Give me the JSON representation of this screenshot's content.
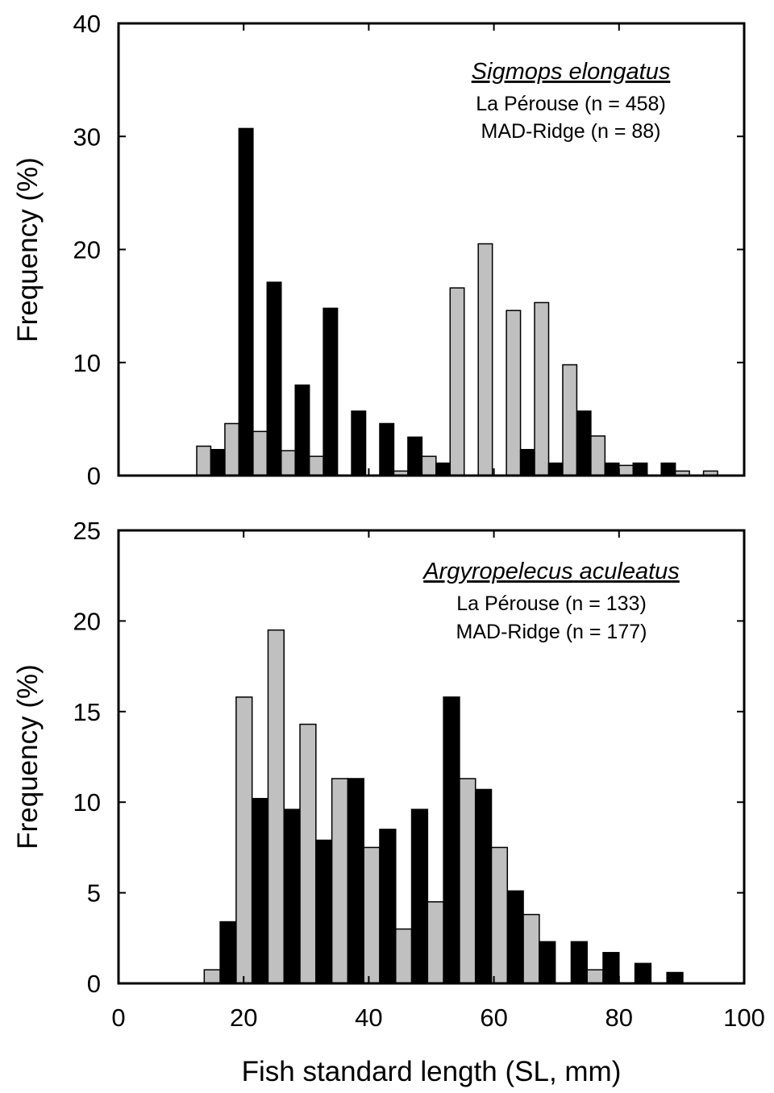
{
  "chart_data": [
    {
      "type": "bar",
      "legend": {
        "species": "Sigmops elongatus",
        "entries": [
          "La Pérouse (n = 458)",
          "MAD-Ridge (n = 88)"
        ]
      },
      "xlabel": "",
      "ylabel": "Frequency (%)",
      "xlim": [
        0,
        100
      ],
      "ylim": [
        0,
        40
      ],
      "yticks": [
        0,
        10,
        20,
        30,
        40
      ],
      "xticks": [
        0,
        20,
        40,
        60,
        80,
        100
      ],
      "x": [
        12.5,
        17,
        21.5,
        26,
        30.5,
        35,
        39.5,
        44,
        48.5,
        53,
        57.5,
        62,
        66.5,
        71,
        75.5,
        80,
        84.5,
        89,
        93.5
      ],
      "series": [
        {
          "key": "lap",
          "color": "#c0c0c0",
          "values": [
            2.6,
            4.6,
            3.9,
            2.2,
            1.7,
            0,
            0,
            0.4,
            1.7,
            16.6,
            20.5,
            14.6,
            15.3,
            9.8,
            3.5,
            0.9,
            0,
            0.4,
            0.4
          ]
        },
        {
          "key": "mad",
          "color": "#000000",
          "values": [
            2.3,
            30.7,
            17.1,
            8.0,
            14.8,
            5.7,
            4.6,
            3.4,
            1.1,
            0,
            0,
            2.3,
            1.1,
            5.7,
            1.1,
            1.1,
            1.1,
            0,
            0
          ]
        }
      ]
    },
    {
      "type": "bar",
      "legend": {
        "species": "Argyropelecus aculeatus",
        "entries": [
          "La Pérouse (n = 133)",
          "MAD-Ridge (n = 177)"
        ]
      },
      "xlabel": "Fish standard length (SL, mm)",
      "ylabel": "Frequency (%)",
      "xlim": [
        0,
        100
      ],
      "ylim": [
        0,
        25
      ],
      "yticks": [
        0,
        5,
        10,
        15,
        20,
        25
      ],
      "xticks": [
        0,
        20,
        40,
        60,
        80,
        100
      ],
      "x": [
        13.7,
        18.8,
        23.9,
        29,
        34.1,
        39.2,
        44.3,
        49.4,
        54.5,
        59.6,
        64.7,
        69.8,
        74.9,
        80,
        85.1
      ],
      "series": [
        {
          "key": "lap",
          "color": "#c0c0c0",
          "values": [
            0.75,
            15.8,
            19.5,
            14.3,
            11.3,
            7.5,
            3.0,
            4.5,
            11.3,
            7.5,
            3.8,
            0,
            0.75,
            0,
            0
          ]
        },
        {
          "key": "mad",
          "color": "#000000",
          "values": [
            3.4,
            10.2,
            9.6,
            7.9,
            11.3,
            8.5,
            9.6,
            15.8,
            10.7,
            5.1,
            2.3,
            2.3,
            1.7,
            1.1,
            0.6
          ]
        }
      ]
    }
  ]
}
